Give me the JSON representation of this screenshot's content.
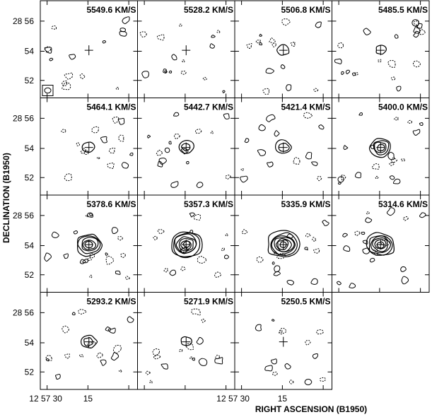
{
  "figure": {
    "ylabel": "DECLINATION (B1950)",
    "xlabel": "RIGHT ASCENSION (B1950)",
    "dec_ticks": [
      "28 56",
      "54",
      "52"
    ],
    "ra_ticks": [
      "12 57 30",
      "15",
      "12 57 30",
      "15"
    ],
    "grid": {
      "rows": 4,
      "cols": 4
    }
  },
  "channels": [
    {
      "velocity": "5549.6 KM/S",
      "emission": 0.0
    },
    {
      "velocity": "5528.2 KM/S",
      "emission": 0.0
    },
    {
      "velocity": "5506.8 KM/S",
      "emission": 0.15
    },
    {
      "velocity": "5485.5 KM/S",
      "emission": 0.1
    },
    {
      "velocity": "5464.1 KM/S",
      "emission": 0.15
    },
    {
      "velocity": "5442.7 KM/S",
      "emission": 0.25
    },
    {
      "velocity": "5421.4 KM/S",
      "emission": 0.35
    },
    {
      "velocity": "5400.0 KM/S",
      "emission": 0.55
    },
    {
      "velocity": "5378.6 KM/S",
      "emission": 0.75
    },
    {
      "velocity": "5357.3 KM/S",
      "emission": 1.0
    },
    {
      "velocity": "5335.9 KM/S",
      "emission": 1.0
    },
    {
      "velocity": "5314.6 KM/S",
      "emission": 0.85
    },
    {
      "velocity": "5293.2 KM/S",
      "emission": 0.3
    },
    {
      "velocity": "5271.9 KM/S",
      "emission": 0.1
    },
    {
      "velocity": "5250.5 KM/S",
      "emission": 0.0
    }
  ]
}
